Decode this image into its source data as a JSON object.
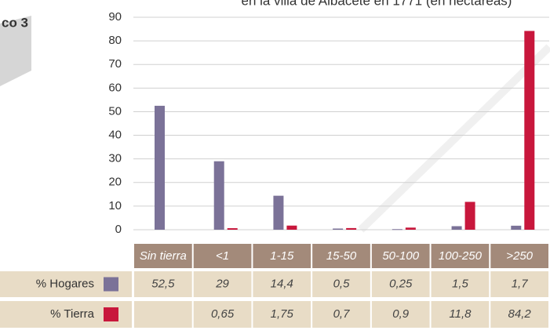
{
  "header": {
    "label": "co 3"
  },
  "chart_data": {
    "type": "bar",
    "title": "en la villa de Albacete en 1771 (en hectáreas)",
    "categories": [
      "Sin tierra",
      "<1",
      "1-15",
      "15-50",
      "50-100",
      "100-250",
      ">250"
    ],
    "series": [
      {
        "name": "% Hogares",
        "color": "#7b7298",
        "values": [
          52.5,
          29,
          14.4,
          0.5,
          0.25,
          1.5,
          1.7
        ],
        "value_labels": [
          "52,5",
          "29",
          "14,4",
          "0,5",
          "0,25",
          "1,5",
          "1,7"
        ]
      },
      {
        "name": "% Tierra",
        "color": "#c8173c",
        "values": [
          null,
          0.65,
          1.75,
          0.7,
          0.9,
          11.8,
          84.2
        ],
        "value_labels": [
          null,
          "0,65",
          "1,75",
          "0,7",
          "0,9",
          "11,8",
          "84,2"
        ]
      }
    ],
    "ylim": [
      0,
      90
    ],
    "yticks": [
      0,
      10,
      20,
      30,
      40,
      50,
      60,
      70,
      80,
      90
    ],
    "grid": true
  }
}
